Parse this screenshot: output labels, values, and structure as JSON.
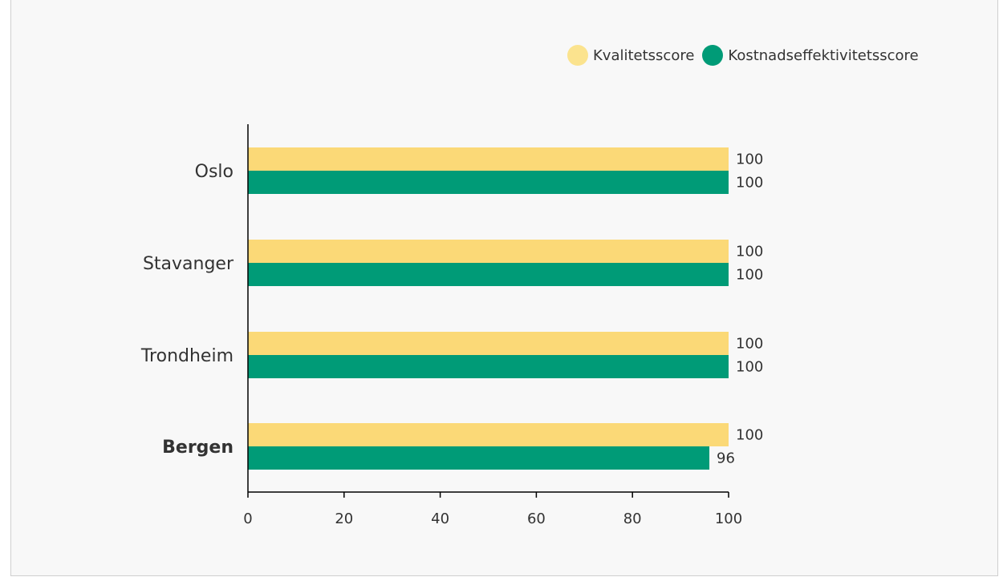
{
  "chart_data": {
    "type": "bar",
    "orientation": "horizontal",
    "categories": [
      "Oslo",
      "Stavanger",
      "Trondheim",
      "Bergen"
    ],
    "highlighted_category": "Bergen",
    "series": [
      {
        "name": "Kvalitetsscore",
        "color": "#fbd977",
        "values": [
          100,
          100,
          100,
          100
        ]
      },
      {
        "name": "Kostnadseffektivitetsscore",
        "color": "#009b77",
        "values": [
          100,
          100,
          100,
          96
        ]
      }
    ],
    "xlim": [
      0,
      100
    ],
    "xticks": [
      0,
      20,
      40,
      60,
      80,
      100
    ],
    "grid": false,
    "legend": "top-right"
  }
}
